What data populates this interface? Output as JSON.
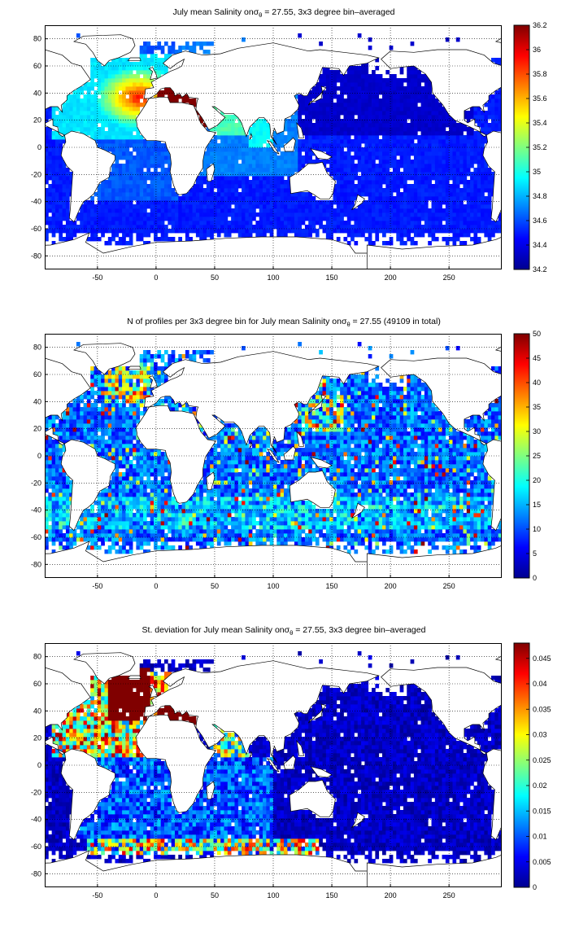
{
  "chart_data": [
    {
      "type": "heatmap",
      "title_prefix": "July mean Salinity on",
      "title_sigma": "σ",
      "title_sub": "θ",
      "title_suffix": " = 27.55, 3x3 degree bin–averaged",
      "xlim": [
        -95,
        295
      ],
      "ylim": [
        -90,
        90
      ],
      "xticks": [
        -50,
        0,
        50,
        100,
        150,
        200,
        250
      ],
      "yticks": [
        -80,
        -60,
        -40,
        -20,
        0,
        20,
        40,
        60,
        80
      ],
      "grid": true,
      "colormap": "jet",
      "clim": [
        34.2,
        36.2
      ],
      "colorbar_ticks": [
        34.2,
        34.4,
        34.6,
        34.8,
        35,
        35.2,
        35.4,
        35.6,
        35.8,
        36,
        36.2
      ],
      "field": "salinity"
    },
    {
      "type": "heatmap",
      "title_prefix": "N of profiles per 3x3 degree bin for July mean Salinity on",
      "title_sigma": "σ",
      "title_sub": "θ",
      "title_suffix": " = 27.55 (49109 in total)",
      "xlim": [
        -95,
        295
      ],
      "ylim": [
        -90,
        90
      ],
      "xticks": [
        -50,
        0,
        50,
        100,
        150,
        200,
        250
      ],
      "yticks": [
        -80,
        -60,
        -40,
        -20,
        0,
        20,
        40,
        60,
        80
      ],
      "grid": true,
      "colormap": "jet",
      "clim": [
        0,
        50
      ],
      "colorbar_ticks": [
        0,
        5,
        10,
        15,
        20,
        25,
        30,
        35,
        40,
        45,
        50
      ],
      "field": "count"
    },
    {
      "type": "heatmap",
      "title_prefix": "St. deviation for July mean Salinity on",
      "title_sigma": "σ",
      "title_sub": "θ",
      "title_suffix": " = 27.55, 3x3 degree bin–averaged",
      "xlim": [
        -95,
        295
      ],
      "ylim": [
        -90,
        90
      ],
      "xticks": [
        -50,
        0,
        50,
        100,
        150,
        200,
        250
      ],
      "yticks": [
        -80,
        -60,
        -40,
        -20,
        0,
        20,
        40,
        60,
        80
      ],
      "grid": true,
      "colormap": "jet",
      "clim": [
        0,
        0.048
      ],
      "colorbar_ticks": [
        0,
        0.005,
        0.01,
        0.015,
        0.02,
        0.025,
        0.03,
        0.035,
        0.04,
        0.045
      ],
      "field": "stdev"
    }
  ]
}
